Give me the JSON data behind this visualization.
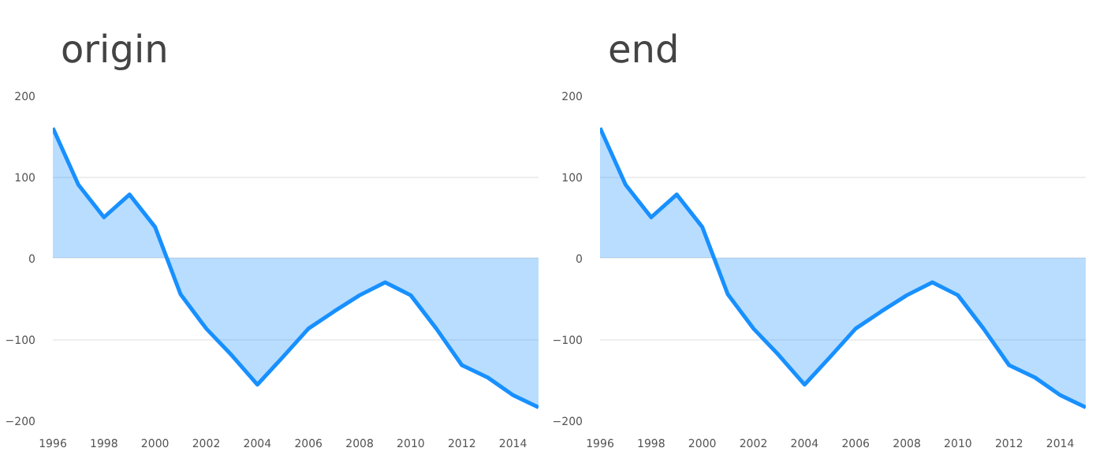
{
  "chart_data": [
    {
      "type": "area",
      "title": "origin",
      "x": [
        1996,
        1997,
        1998,
        1999,
        2000,
        2001,
        2002,
        2003,
        2004,
        2005,
        2006,
        2007,
        2008,
        2009,
        2010,
        2011,
        2012,
        2013,
        2014,
        2015
      ],
      "series": [
        {
          "color": "#1890ff",
          "values": [
            160,
            90,
            50,
            78,
            38,
            -45,
            -87,
            -120,
            -156,
            -122,
            -87,
            -66,
            -46,
            -30,
            -46,
            -87,
            -132,
            -147,
            -169,
            -184
          ]
        }
      ],
      "xlim": [
        1996,
        2015
      ],
      "xticks": [
        1996,
        1998,
        2000,
        2002,
        2004,
        2006,
        2008,
        2010,
        2012,
        2014
      ],
      "ylim": [
        -200,
        200
      ],
      "yticks": [
        -200,
        -100,
        0,
        100,
        200
      ],
      "grid": "y"
    },
    {
      "type": "area",
      "title": "end",
      "x": [
        1996,
        1997,
        1998,
        1999,
        2000,
        2001,
        2002,
        2003,
        2004,
        2005,
        2006,
        2007,
        2008,
        2009,
        2010,
        2011,
        2012,
        2013,
        2014,
        2015
      ],
      "series": [
        {
          "color": "#1890ff",
          "values": [
            160,
            90,
            50,
            78,
            38,
            -45,
            -87,
            -120,
            -156,
            -122,
            -87,
            -66,
            -46,
            -30,
            -46,
            -87,
            -132,
            -147,
            -169,
            -184
          ]
        }
      ],
      "xlim": [
        1996,
        2015
      ],
      "xticks": [
        1996,
        1998,
        2000,
        2002,
        2004,
        2006,
        2008,
        2010,
        2012,
        2014
      ],
      "ylim": [
        -200,
        200
      ],
      "yticks": [
        -200,
        -100,
        0,
        100,
        200
      ],
      "grid": "y"
    }
  ]
}
